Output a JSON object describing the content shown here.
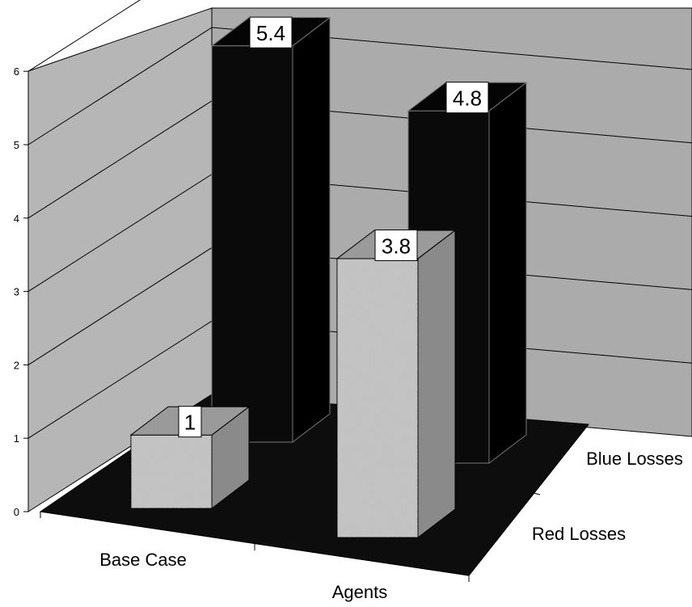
{
  "chart_data": {
    "type": "bar",
    "title": "",
    "xlabel": "",
    "ylabel": "",
    "categories": [
      "Base Case",
      "Agents"
    ],
    "series": [
      {
        "name": "Red Losses",
        "values": [
          1,
          3.8
        ]
      },
      {
        "name": "Blue Losses",
        "values": [
          5.4,
          4.8
        ]
      }
    ],
    "ylim": [
      0,
      6
    ],
    "yticks": [
      "0",
      "1",
      "2",
      "3",
      "4",
      "5",
      "6"
    ],
    "data_labels": {
      "red": [
        "1",
        "3.8"
      ],
      "blue": [
        "5.4",
        "4.8"
      ]
    },
    "grid": true,
    "projection": "3d",
    "colors": {
      "red_bar": "#c4c4c4",
      "blue_bar": "#0a0a0a",
      "floor": "#0d0d0d",
      "wall": "#b3b3b3"
    }
  }
}
